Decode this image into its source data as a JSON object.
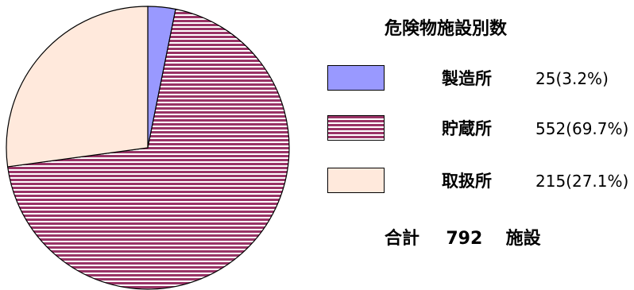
{
  "chart_data": {
    "type": "pie",
    "title": "危険物施設別数",
    "start_angle_deg": 0,
    "direction": "clockwise",
    "slices": [
      {
        "label": "製造所",
        "value": 25,
        "percent": 3.2,
        "value_text": "25(3.2%)",
        "color": "#9999ff",
        "pattern": "solid"
      },
      {
        "label": "貯蔵所",
        "value": 552,
        "percent": 69.7,
        "value_text": "552(69.7%)",
        "color": "#993366",
        "pattern": "horizontal-stripes"
      },
      {
        "label": "取扱所",
        "value": 215,
        "percent": 27.1,
        "value_text": "215(27.1%)",
        "color": "#ffe9dc",
        "pattern": "solid"
      }
    ],
    "total": {
      "label": "合計",
      "value": 792,
      "unit": "施設"
    },
    "legend_placement": "right"
  }
}
